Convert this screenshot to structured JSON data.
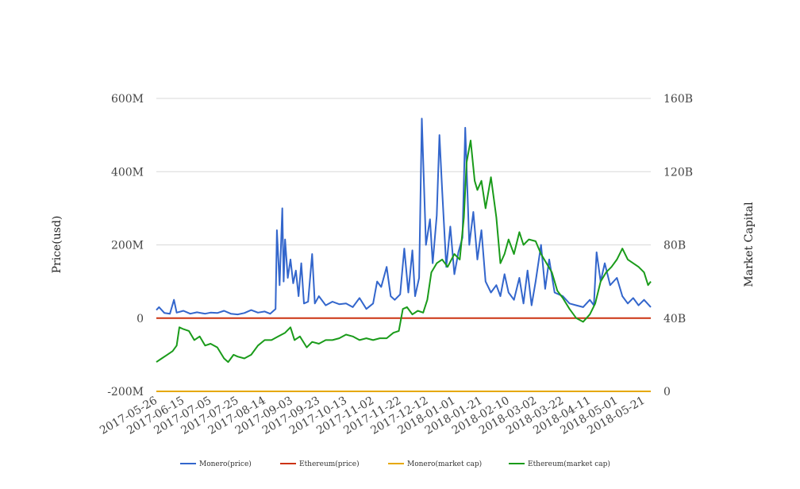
{
  "chart_data": {
    "type": "line",
    "title": "",
    "ylabel_left": "Price(usd)",
    "ylabel_right": "Market Capital",
    "yticks_left": [
      "-200M",
      "0",
      "200M",
      "400M",
      "600M"
    ],
    "yticks_right": [
      "0",
      "40B",
      "80B",
      "120B",
      "160B"
    ],
    "ylim_left": [
      -200000000,
      600000000
    ],
    "ylim_right": [
      0,
      160000000000
    ],
    "x_start": "2017-05-26",
    "x_end": "2018-05-26",
    "xticks": [
      "2017-05-26",
      "2017-06-15",
      "2017-07-05",
      "2017-07-25",
      "2017-08-14",
      "2017-09-03",
      "2017-09-23",
      "2017-10-13",
      "2017-11-02",
      "2017-11-22",
      "2017-12-12",
      "2018-01-01",
      "2018-01-21",
      "2018-02-10",
      "2018-03-02",
      "2018-03-22",
      "2018-04-11",
      "2018-05-01",
      "2018-05-21"
    ],
    "grid": true,
    "legend_position": "bottom",
    "series": [
      {
        "name": "Monero(price)",
        "axis": "left",
        "color": "#3366cc",
        "points": [
          [
            "2017-05-26",
            22000000
          ],
          [
            "2017-05-28",
            30000000
          ],
          [
            "2017-06-01",
            14000000
          ],
          [
            "2017-06-05",
            12000000
          ],
          [
            "2017-06-08",
            50000000
          ],
          [
            "2017-06-10",
            15000000
          ],
          [
            "2017-06-15",
            20000000
          ],
          [
            "2017-06-20",
            12000000
          ],
          [
            "2017-06-25",
            16000000
          ],
          [
            "2017-07-01",
            12000000
          ],
          [
            "2017-07-05",
            15000000
          ],
          [
            "2017-07-10",
            14000000
          ],
          [
            "2017-07-15",
            20000000
          ],
          [
            "2017-07-20",
            12000000
          ],
          [
            "2017-07-25",
            10000000
          ],
          [
            "2017-07-30",
            14000000
          ],
          [
            "2017-08-04",
            22000000
          ],
          [
            "2017-08-09",
            15000000
          ],
          [
            "2017-08-14",
            18000000
          ],
          [
            "2017-08-18",
            12000000
          ],
          [
            "2017-08-22",
            25000000
          ],
          [
            "2017-08-23",
            240000000
          ],
          [
            "2017-08-25",
            90000000
          ],
          [
            "2017-08-27",
            300000000
          ],
          [
            "2017-08-28",
            100000000
          ],
          [
            "2017-08-29",
            215000000
          ],
          [
            "2017-08-31",
            110000000
          ],
          [
            "2017-09-02",
            160000000
          ],
          [
            "2017-09-04",
            95000000
          ],
          [
            "2017-09-06",
            130000000
          ],
          [
            "2017-09-08",
            60000000
          ],
          [
            "2017-09-10",
            150000000
          ],
          [
            "2017-09-12",
            40000000
          ],
          [
            "2017-09-15",
            45000000
          ],
          [
            "2017-09-18",
            175000000
          ],
          [
            "2017-09-20",
            40000000
          ],
          [
            "2017-09-23",
            60000000
          ],
          [
            "2017-09-28",
            35000000
          ],
          [
            "2017-10-03",
            45000000
          ],
          [
            "2017-10-08",
            38000000
          ],
          [
            "2017-10-13",
            40000000
          ],
          [
            "2017-10-18",
            30000000
          ],
          [
            "2017-10-23",
            55000000
          ],
          [
            "2017-10-28",
            25000000
          ],
          [
            "2017-11-02",
            40000000
          ],
          [
            "2017-11-05",
            100000000
          ],
          [
            "2017-11-08",
            85000000
          ],
          [
            "2017-11-12",
            140000000
          ],
          [
            "2017-11-15",
            60000000
          ],
          [
            "2017-11-18",
            50000000
          ],
          [
            "2017-11-22",
            65000000
          ],
          [
            "2017-11-25",
            190000000
          ],
          [
            "2017-11-28",
            70000000
          ],
          [
            "2017-12-01",
            185000000
          ],
          [
            "2017-12-03",
            60000000
          ],
          [
            "2017-12-06",
            110000000
          ],
          [
            "2017-12-08",
            545000000
          ],
          [
            "2017-12-11",
            200000000
          ],
          [
            "2017-12-14",
            270000000
          ],
          [
            "2017-12-16",
            150000000
          ],
          [
            "2017-12-19",
            280000000
          ],
          [
            "2017-12-21",
            500000000
          ],
          [
            "2017-12-23",
            350000000
          ],
          [
            "2017-12-26",
            140000000
          ],
          [
            "2017-12-29",
            250000000
          ],
          [
            "2018-01-01",
            120000000
          ],
          [
            "2018-01-04",
            180000000
          ],
          [
            "2018-01-07",
            220000000
          ],
          [
            "2018-01-09",
            520000000
          ],
          [
            "2018-01-12",
            200000000
          ],
          [
            "2018-01-15",
            290000000
          ],
          [
            "2018-01-18",
            160000000
          ],
          [
            "2018-01-21",
            240000000
          ],
          [
            "2018-01-24",
            100000000
          ],
          [
            "2018-01-28",
            70000000
          ],
          [
            "2018-02-01",
            90000000
          ],
          [
            "2018-02-04",
            60000000
          ],
          [
            "2018-02-07",
            120000000
          ],
          [
            "2018-02-10",
            70000000
          ],
          [
            "2018-02-14",
            50000000
          ],
          [
            "2018-02-18",
            110000000
          ],
          [
            "2018-02-21",
            40000000
          ],
          [
            "2018-02-24",
            130000000
          ],
          [
            "2018-02-27",
            35000000
          ],
          [
            "2018-03-02",
            100000000
          ],
          [
            "2018-03-06",
            200000000
          ],
          [
            "2018-03-09",
            80000000
          ],
          [
            "2018-03-12",
            160000000
          ],
          [
            "2018-03-16",
            70000000
          ],
          [
            "2018-03-22",
            60000000
          ],
          [
            "2018-03-27",
            40000000
          ],
          [
            "2018-04-01",
            35000000
          ],
          [
            "2018-04-06",
            30000000
          ],
          [
            "2018-04-11",
            50000000
          ],
          [
            "2018-04-14",
            35000000
          ],
          [
            "2018-04-16",
            180000000
          ],
          [
            "2018-04-19",
            100000000
          ],
          [
            "2018-04-22",
            150000000
          ],
          [
            "2018-04-26",
            90000000
          ],
          [
            "2018-05-01",
            110000000
          ],
          [
            "2018-05-05",
            60000000
          ],
          [
            "2018-05-09",
            40000000
          ],
          [
            "2018-05-13",
            55000000
          ],
          [
            "2018-05-17",
            35000000
          ],
          [
            "2018-05-21",
            50000000
          ],
          [
            "2018-05-26",
            30000000
          ]
        ]
      },
      {
        "name": "Ethereum(price)",
        "axis": "left",
        "color": "#cc3311",
        "points": [
          [
            "2017-05-26",
            0
          ],
          [
            "2018-05-26",
            0
          ]
        ]
      },
      {
        "name": "Monero(market cap)",
        "axis": "right",
        "color": "#e6a800",
        "points": [
          [
            "2017-05-26",
            0
          ],
          [
            "2018-05-26",
            0
          ]
        ]
      },
      {
        "name": "Ethereum(market cap)",
        "axis": "right",
        "color": "#1a9b1a",
        "points": [
          [
            "2017-05-26",
            16000000000
          ],
          [
            "2017-05-30",
            18000000000
          ],
          [
            "2017-06-03",
            20000000000
          ],
          [
            "2017-06-07",
            22000000000
          ],
          [
            "2017-06-10",
            25000000000
          ],
          [
            "2017-06-12",
            35000000000
          ],
          [
            "2017-06-15",
            34000000000
          ],
          [
            "2017-06-19",
            33000000000
          ],
          [
            "2017-06-23",
            28000000000
          ],
          [
            "2017-06-27",
            30000000000
          ],
          [
            "2017-07-01",
            25000000000
          ],
          [
            "2017-07-05",
            26000000000
          ],
          [
            "2017-07-10",
            24000000000
          ],
          [
            "2017-07-15",
            18000000000
          ],
          [
            "2017-07-18",
            16000000000
          ],
          [
            "2017-07-22",
            20000000000
          ],
          [
            "2017-07-25",
            19000000000
          ],
          [
            "2017-07-30",
            18000000000
          ],
          [
            "2017-08-04",
            20000000000
          ],
          [
            "2017-08-09",
            25000000000
          ],
          [
            "2017-08-14",
            28000000000
          ],
          [
            "2017-08-19",
            28000000000
          ],
          [
            "2017-08-24",
            30000000000
          ],
          [
            "2017-08-29",
            32000000000
          ],
          [
            "2017-09-02",
            35000000000
          ],
          [
            "2017-09-05",
            28000000000
          ],
          [
            "2017-09-09",
            30000000000
          ],
          [
            "2017-09-14",
            24000000000
          ],
          [
            "2017-09-18",
            27000000000
          ],
          [
            "2017-09-23",
            26000000000
          ],
          [
            "2017-09-28",
            28000000000
          ],
          [
            "2017-10-03",
            28000000000
          ],
          [
            "2017-10-08",
            29000000000
          ],
          [
            "2017-10-13",
            31000000000
          ],
          [
            "2017-10-18",
            30000000000
          ],
          [
            "2017-10-23",
            28000000000
          ],
          [
            "2017-10-28",
            29000000000
          ],
          [
            "2017-11-02",
            28000000000
          ],
          [
            "2017-11-07",
            29000000000
          ],
          [
            "2017-11-12",
            29000000000
          ],
          [
            "2017-11-17",
            32000000000
          ],
          [
            "2017-11-21",
            33000000000
          ],
          [
            "2017-11-24",
            45000000000
          ],
          [
            "2017-11-27",
            46000000000
          ],
          [
            "2017-12-01",
            42000000000
          ],
          [
            "2017-12-05",
            44000000000
          ],
          [
            "2017-12-09",
            43000000000
          ],
          [
            "2017-12-12",
            50000000000
          ],
          [
            "2017-12-15",
            65000000000
          ],
          [
            "2017-12-19",
            70000000000
          ],
          [
            "2017-12-23",
            72000000000
          ],
          [
            "2017-12-27",
            68000000000
          ],
          [
            "2018-01-01",
            75000000000
          ],
          [
            "2018-01-05",
            72000000000
          ],
          [
            "2018-01-08",
            95000000000
          ],
          [
            "2018-01-10",
            125000000000
          ],
          [
            "2018-01-13",
            137000000000
          ],
          [
            "2018-01-16",
            115000000000
          ],
          [
            "2018-01-18",
            110000000000
          ],
          [
            "2018-01-21",
            115000000000
          ],
          [
            "2018-01-24",
            100000000000
          ],
          [
            "2018-01-28",
            117000000000
          ],
          [
            "2018-02-01",
            95000000000
          ],
          [
            "2018-02-04",
            70000000000
          ],
          [
            "2018-02-07",
            75000000000
          ],
          [
            "2018-02-10",
            83000000000
          ],
          [
            "2018-02-14",
            75000000000
          ],
          [
            "2018-02-18",
            87000000000
          ],
          [
            "2018-02-21",
            80000000000
          ],
          [
            "2018-02-25",
            83000000000
          ],
          [
            "2018-03-02",
            82000000000
          ],
          [
            "2018-03-06",
            75000000000
          ],
          [
            "2018-03-10",
            70000000000
          ],
          [
            "2018-03-14",
            65000000000
          ],
          [
            "2018-03-18",
            55000000000
          ],
          [
            "2018-03-22",
            51000000000
          ],
          [
            "2018-03-27",
            45000000000
          ],
          [
            "2018-04-01",
            40000000000
          ],
          [
            "2018-04-06",
            38000000000
          ],
          [
            "2018-04-11",
            42000000000
          ],
          [
            "2018-04-15",
            48000000000
          ],
          [
            "2018-04-19",
            60000000000
          ],
          [
            "2018-04-23",
            65000000000
          ],
          [
            "2018-04-27",
            68000000000
          ],
          [
            "2018-05-01",
            72000000000
          ],
          [
            "2018-05-05",
            78000000000
          ],
          [
            "2018-05-09",
            72000000000
          ],
          [
            "2018-05-13",
            70000000000
          ],
          [
            "2018-05-17",
            68000000000
          ],
          [
            "2018-05-21",
            65000000000
          ],
          [
            "2018-05-24",
            58000000000
          ],
          [
            "2018-05-26",
            60000000000
          ]
        ]
      }
    ]
  }
}
